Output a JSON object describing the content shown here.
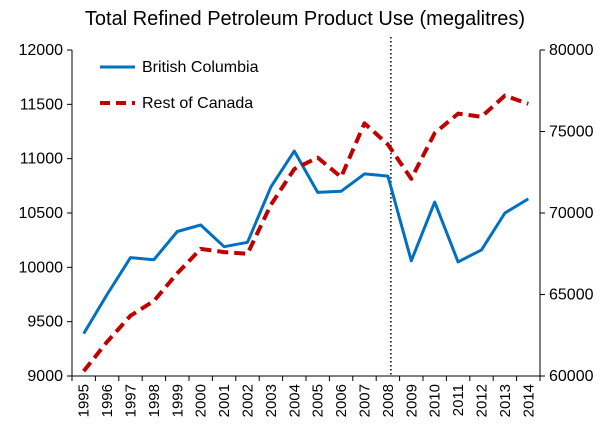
{
  "chart_data": {
    "type": "line",
    "title": "Total Refined Petroleum Product Use (megalitres)",
    "xlabel": "",
    "ylabel_left": "",
    "ylabel_right": "",
    "categories": [
      "1995",
      "1996",
      "1997",
      "1998",
      "1999",
      "2000",
      "2001",
      "2002",
      "2003",
      "2004",
      "2005",
      "2006",
      "2007",
      "2008",
      "2009",
      "2010",
      "2011",
      "2012",
      "2013",
      "2014"
    ],
    "y_left": {
      "min": 9000,
      "max": 12000,
      "ticks": [
        9000,
        9500,
        10000,
        10500,
        11000,
        11500,
        12000
      ]
    },
    "y_right": {
      "min": 60000,
      "max": 80000,
      "ticks": [
        60000,
        65000,
        70000,
        75000,
        80000
      ]
    },
    "series": [
      {
        "name": "British Columbia",
        "axis": "left",
        "color": "#0070C0",
        "dash": "solid",
        "values": [
          9390,
          9750,
          10090,
          10070,
          10330,
          10390,
          10190,
          10230,
          10740,
          11070,
          10690,
          10700,
          10860,
          10840,
          10060,
          10600,
          10050,
          10160,
          10500,
          10630
        ]
      },
      {
        "name": "Rest of Canada",
        "axis": "right",
        "color": "#C00000",
        "dash": "dashed",
        "values": [
          60300,
          62100,
          63700,
          64600,
          66300,
          67800,
          67600,
          67500,
          70500,
          72700,
          73400,
          72200,
          75500,
          74200,
          72100,
          74900,
          76100,
          75900,
          77200,
          76700
        ]
      }
    ],
    "reference_line": {
      "category": "2008",
      "style": "dotted",
      "color": "#000000"
    },
    "legend": {
      "position": "top-left",
      "entries": [
        "British Columbia",
        "Rest of Canada"
      ]
    },
    "grid": false
  }
}
